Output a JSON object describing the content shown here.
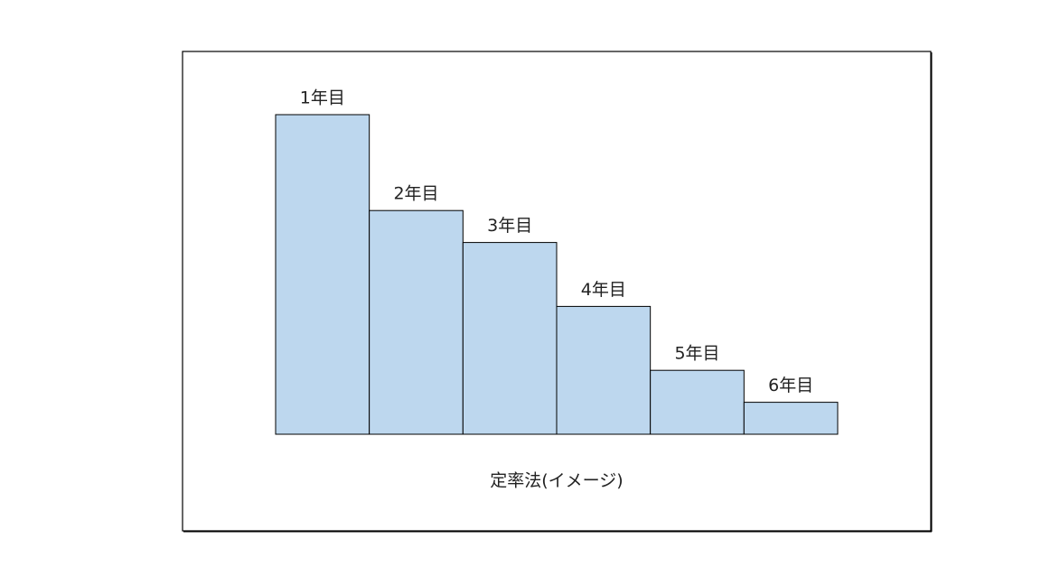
{
  "chart_data": {
    "type": "bar",
    "title": "定率法(イメージ)",
    "categories": [
      "1年目",
      "2年目",
      "3年目",
      "4年目",
      "5年目",
      "6年目"
    ],
    "values": [
      100,
      70,
      60,
      40,
      20,
      10
    ],
    "color": "#bdd7ee",
    "ylim": [
      0,
      100
    ]
  }
}
